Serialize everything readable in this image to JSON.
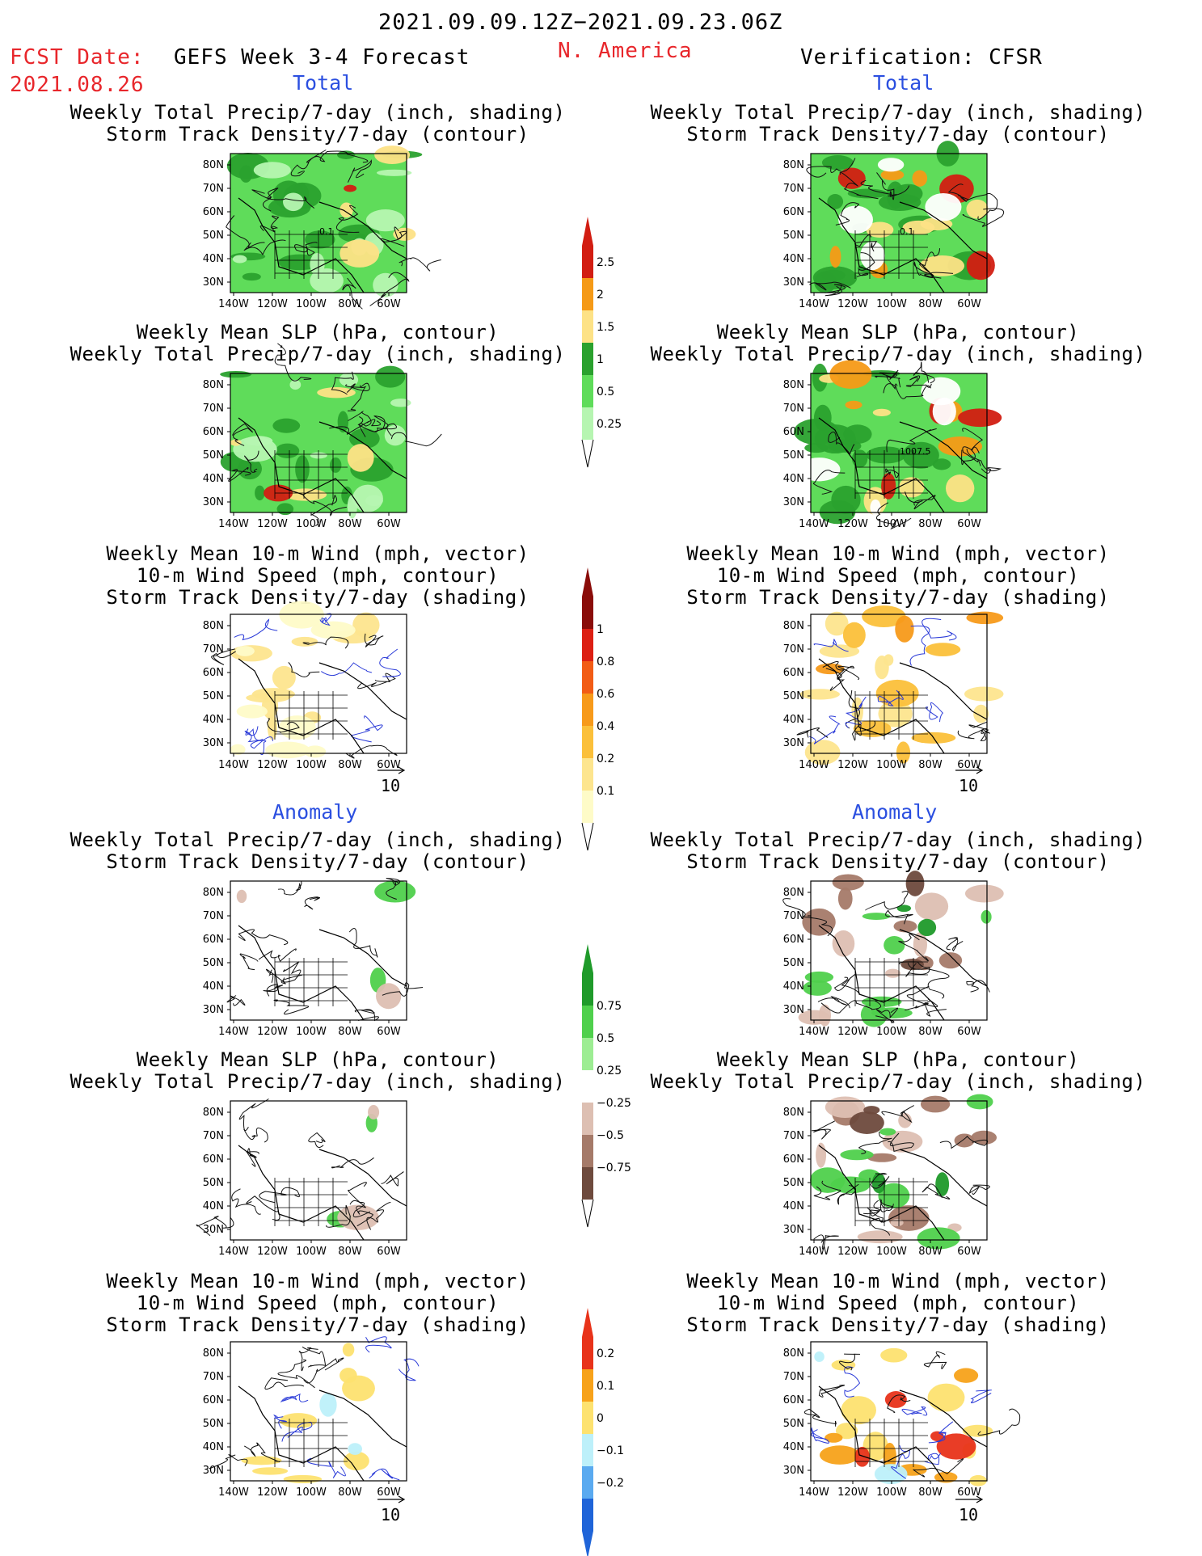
{
  "header": {
    "date_range": "2021.09.09.12Z−2021.09.23.06Z",
    "fcst_label": "FCST Date:",
    "fcst_date": "2021.08.26",
    "model": "GEFS Week 3-4 Forecast",
    "region": "N. America",
    "verification": "Verification: CFSR"
  },
  "sections": {
    "total_left": "Total",
    "total_right": "Total",
    "anomaly_left": "Anomaly",
    "anomaly_right": "Anomaly"
  },
  "panels": [
    {
      "id": "fc-tot-precip",
      "lines": [
        "Weekly Total Precip/7-day (inch, shading)",
        "Storm Track Density/7-day (contour)"
      ],
      "fill": "green",
      "labels": [
        "0.1"
      ]
    },
    {
      "id": "fc-tot-slp",
      "lines": [
        "Weekly Mean SLP (hPa, contour)",
        "Weekly Total Precip/7-day (inch, shading)"
      ],
      "fill": "green",
      "labels": []
    },
    {
      "id": "fc-tot-wind",
      "lines": [
        "Weekly Mean 10-m Wind (mph, vector)",
        "10-m Wind Speed (mph, contour)",
        "Storm Track Density/7-day (shading)"
      ],
      "fill": "yellow",
      "labels": []
    },
    {
      "id": "ob-tot-precip",
      "lines": [
        "Weekly Total Precip/7-day (inch, shading)",
        "Storm Track Density/7-day (contour)"
      ],
      "fill": "green-red",
      "labels": [
        "0.1"
      ]
    },
    {
      "id": "ob-tot-slp",
      "lines": [
        "Weekly Mean SLP (hPa, contour)",
        "Weekly Total Precip/7-day (inch, shading)"
      ],
      "fill": "green-red",
      "labels": [
        "1007.5"
      ]
    },
    {
      "id": "ob-tot-wind",
      "lines": [
        "Weekly Mean 10-m Wind (mph, vector)",
        "10-m Wind Speed (mph, contour)",
        "Storm Track Density/7-day (shading)"
      ],
      "fill": "orange",
      "labels": []
    },
    {
      "id": "fc-anom-precip",
      "lines": [
        "Weekly Total Precip/7-day (inch, shading)",
        "Storm Track Density/7-day (contour)"
      ],
      "fill": "white",
      "labels": []
    },
    {
      "id": "fc-anom-slp",
      "lines": [
        "Weekly Mean SLP (hPa, contour)",
        "Weekly Total Precip/7-day (inch, shading)"
      ],
      "fill": "white",
      "labels": []
    },
    {
      "id": "fc-anom-wind",
      "lines": [
        "Weekly Mean 10-m Wind (mph, vector)",
        "10-m Wind Speed (mph, contour)",
        "Storm Track Density/7-day (shading)"
      ],
      "fill": "anom-yellow",
      "labels": []
    },
    {
      "id": "ob-anom-precip",
      "lines": [
        "Weekly Total Precip/7-day (inch, shading)",
        "Storm Track Density/7-day (contour)"
      ],
      "fill": "brown-green",
      "labels": []
    },
    {
      "id": "ob-anom-slp",
      "lines": [
        "Weekly Mean SLP (hPa, contour)",
        "Weekly Total Precip/7-day (inch, shading)"
      ],
      "fill": "brown-green",
      "labels": []
    },
    {
      "id": "ob-anom-wind",
      "lines": [
        "Weekly Mean 10-m Wind (mph, vector)",
        "10-m Wind Speed (mph, contour)",
        "Storm Track Density/7-day (shading)"
      ],
      "fill": "anom-orange",
      "labels": []
    }
  ],
  "axes": {
    "lat_ticks": [
      "80N",
      "70N",
      "60N",
      "50N",
      "40N",
      "30N"
    ],
    "lon_ticks": [
      "140W",
      "120W",
      "100W",
      "80W",
      "60W"
    ]
  },
  "vector_ref": "10",
  "colorbars": [
    {
      "id": "precip-total",
      "labels": [
        "2.5",
        "2",
        "1.5",
        "1",
        "0.5",
        "0.25"
      ],
      "colors": [
        "#d21d12",
        "#f59a17",
        "#fde286",
        "#2aa12e",
        "#5fdc5a",
        "#b6f5b1"
      ]
    },
    {
      "id": "storm-total",
      "labels": [
        "1",
        "0.8",
        "0.6",
        "0.4",
        "0.2",
        "0.1"
      ],
      "colors": [
        "#8a0c09",
        "#dc1f13",
        "#f25c15",
        "#f79a1a",
        "#fbc03a",
        "#fde58e",
        "#fefbc8"
      ]
    },
    {
      "id": "precip-anom",
      "labels": [
        "0.75",
        "0.5",
        "0.25",
        "−0.25",
        "−0.5",
        "−0.75"
      ],
      "colors": [
        "#1f9a2a",
        "#4fd04c",
        "#9ded93",
        "#ffffff",
        "#ddbfb2",
        "#a57a69",
        "#6e4a3d"
      ]
    },
    {
      "id": "storm-anom",
      "labels": [
        "0.2",
        "0.1",
        "0",
        "−0.1",
        "−0.2"
      ],
      "colors": [
        "#e8331a",
        "#f7a21a",
        "#fde270",
        "#bdf0fa",
        "#5aaaf0",
        "#1f64d8"
      ]
    }
  ]
}
